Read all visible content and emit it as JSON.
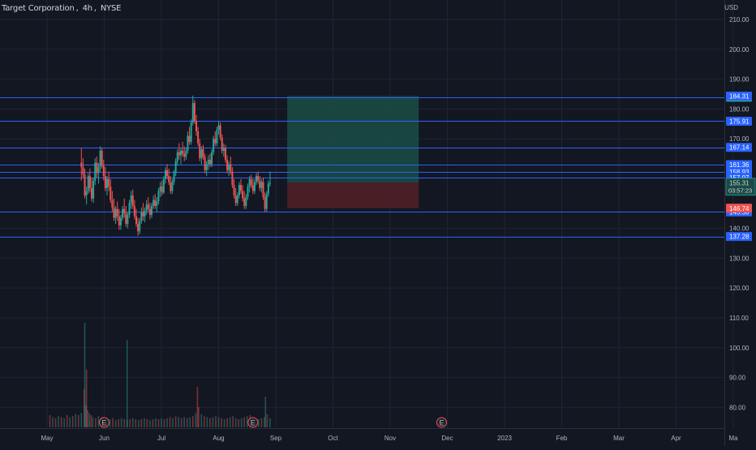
{
  "header": {
    "symbol": "Target Corporation",
    "interval": "4h",
    "exchange": "NYSE",
    "currency": "USD"
  },
  "colors": {
    "background": "#131722",
    "grid": "#1f2433",
    "up": "#26a69a",
    "down": "#ef5350",
    "hline": "#2962ff",
    "axis_text": "#b2b5be",
    "profit_zone": "#1b4a45",
    "loss_zone": "#4d1f26"
  },
  "chart_data": {
    "type": "candlestick",
    "x_axis_labels": [
      "May",
      "Jun",
      "Jul",
      "Aug",
      "Sep",
      "Oct",
      "Nov",
      "Dec",
      "2023",
      "Feb",
      "Mar",
      "Apr",
      "Ma"
    ],
    "y_axis_ticks": [
      "210.00",
      "200.00",
      "190.00",
      "180.00",
      "170.00",
      "140.00",
      "130.00",
      "120.00",
      "110.00",
      "100.00",
      "90.00",
      "80.00"
    ],
    "ylim": [
      73,
      215
    ],
    "horizontal_lines": [
      {
        "value": 183.94,
        "label": "183.94",
        "style": "green"
      },
      {
        "value": 175.91,
        "label": "175.91",
        "style": "blue"
      },
      {
        "value": 167.14,
        "label": "167.14",
        "style": "blue"
      },
      {
        "value": 161.36,
        "label": "161.36",
        "style": "blue"
      },
      {
        "value": 158.93,
        "label": "158.93",
        "style": "blue"
      },
      {
        "value": 157.07,
        "label": "157.07",
        "style": "blue"
      },
      {
        "value": 145.5,
        "label": "145.50",
        "style": "blue"
      },
      {
        "value": 137.28,
        "label": "137.28",
        "style": "blue"
      }
    ],
    "price_badges": [
      {
        "value": 184.31,
        "label": "184.31",
        "style": "blue"
      },
      {
        "value": 154.45,
        "label": "154.45",
        "style": "gray"
      },
      {
        "value": 146.74,
        "label": "146.74",
        "style": "red"
      }
    ],
    "last_price": {
      "value": 155.31,
      "label": "155.31",
      "countdown": "03:57:23"
    },
    "position": {
      "entry": 155.31,
      "target": 184.31,
      "stop": 146.74,
      "start_month": 4.2,
      "end_month": 6.5
    },
    "earnings_markers": [
      {
        "label": "E",
        "month": 1.0
      },
      {
        "label": "E",
        "month": 3.6
      },
      {
        "label": "E",
        "month": 6.9
      }
    ],
    "candles": [
      [
        0.6,
        162.0,
        167.0,
        156.0,
        160.5
      ],
      [
        0.63,
        160.5,
        163.5,
        157.0,
        158.0
      ],
      [
        0.66,
        158.0,
        160.0,
        150.0,
        151.0
      ],
      [
        0.69,
        151.0,
        154.0,
        148.0,
        152.5
      ],
      [
        0.72,
        152.5,
        158.5,
        151.5,
        157.5
      ],
      [
        0.75,
        157.5,
        160.0,
        152.0,
        153.5
      ],
      [
        0.78,
        153.5,
        157.0,
        149.0,
        150.0
      ],
      [
        0.81,
        150.0,
        157.0,
        148.5,
        156.0
      ],
      [
        0.84,
        156.0,
        163.5,
        154.5,
        162.0
      ],
      [
        0.87,
        162.0,
        164.0,
        157.0,
        158.5
      ],
      [
        0.9,
        158.5,
        162.0,
        155.0,
        160.5
      ],
      [
        0.93,
        160.5,
        167.5,
        159.0,
        166.0
      ],
      [
        0.96,
        166.0,
        167.0,
        160.0,
        161.0
      ],
      [
        0.99,
        161.0,
        163.0,
        156.0,
        157.5
      ],
      [
        1.02,
        157.5,
        160.5,
        152.5,
        153.5
      ],
      [
        1.05,
        153.5,
        157.5,
        151.0,
        156.5
      ],
      [
        1.08,
        156.5,
        159.0,
        152.5,
        154.0
      ],
      [
        1.11,
        154.0,
        156.5,
        148.5,
        149.5
      ],
      [
        1.14,
        149.5,
        152.5,
        145.5,
        147.0
      ],
      [
        1.17,
        147.0,
        150.0,
        142.5,
        143.5
      ],
      [
        1.2,
        143.5,
        147.5,
        141.5,
        146.5
      ],
      [
        1.23,
        146.5,
        149.0,
        142.5,
        144.0
      ],
      [
        1.26,
        144.0,
        146.5,
        139.5,
        141.0
      ],
      [
        1.29,
        141.0,
        144.5,
        139.5,
        143.5
      ],
      [
        1.32,
        143.5,
        147.5,
        142.5,
        146.5
      ],
      [
        1.35,
        146.5,
        150.0,
        143.5,
        145.0
      ],
      [
        1.38,
        145.0,
        147.5,
        140.5,
        141.5
      ],
      [
        1.41,
        141.5,
        145.5,
        140.0,
        144.5
      ],
      [
        1.44,
        144.5,
        149.5,
        143.5,
        148.5
      ],
      [
        1.47,
        148.5,
        152.5,
        146.5,
        151.0
      ],
      [
        1.5,
        151.0,
        153.0,
        146.5,
        147.5
      ],
      [
        1.53,
        147.5,
        149.5,
        143.0,
        144.0
      ],
      [
        1.56,
        144.0,
        146.5,
        140.5,
        141.5
      ],
      [
        1.59,
        141.5,
        143.5,
        137.5,
        139.0
      ],
      [
        1.62,
        139.0,
        143.5,
        138.0,
        142.5
      ],
      [
        1.65,
        142.5,
        147.0,
        141.5,
        145.5
      ],
      [
        1.68,
        145.5,
        148.5,
        142.5,
        144.0
      ],
      [
        1.71,
        144.0,
        147.0,
        142.0,
        146.0
      ],
      [
        1.74,
        146.0,
        149.5,
        144.5,
        148.0
      ],
      [
        1.77,
        148.0,
        150.5,
        145.5,
        146.5
      ],
      [
        1.8,
        146.5,
        148.5,
        143.0,
        144.5
      ],
      [
        1.83,
        144.5,
        148.5,
        143.5,
        147.5
      ],
      [
        1.86,
        147.5,
        151.0,
        146.5,
        149.5
      ],
      [
        1.89,
        149.5,
        151.5,
        146.5,
        147.5
      ],
      [
        1.92,
        147.5,
        150.5,
        145.5,
        149.0
      ],
      [
        1.95,
        149.0,
        153.5,
        148.0,
        152.5
      ],
      [
        1.98,
        152.5,
        155.5,
        150.5,
        154.0
      ],
      [
        2.01,
        154.0,
        156.0,
        151.0,
        152.0
      ],
      [
        2.04,
        152.0,
        157.5,
        151.5,
        156.5
      ],
      [
        2.07,
        156.5,
        160.5,
        155.0,
        159.5
      ],
      [
        2.1,
        159.5,
        161.5,
        156.5,
        157.5
      ],
      [
        2.13,
        157.5,
        160.0,
        154.5,
        155.5
      ],
      [
        2.16,
        155.5,
        157.5,
        151.5,
        152.5
      ],
      [
        2.19,
        152.5,
        156.5,
        151.5,
        155.5
      ],
      [
        2.22,
        155.5,
        159.5,
        154.5,
        158.5
      ],
      [
        2.25,
        158.5,
        163.5,
        157.5,
        162.5
      ],
      [
        2.28,
        162.5,
        166.5,
        161.0,
        165.5
      ],
      [
        2.31,
        165.5,
        168.5,
        163.0,
        164.5
      ],
      [
        2.34,
        164.5,
        167.0,
        161.5,
        166.0
      ],
      [
        2.37,
        166.0,
        169.0,
        164.0,
        165.0
      ],
      [
        2.4,
        165.0,
        167.5,
        162.5,
        164.0
      ],
      [
        2.43,
        164.0,
        167.0,
        163.0,
        166.0
      ],
      [
        2.46,
        166.0,
        172.5,
        165.0,
        171.0
      ],
      [
        2.49,
        171.0,
        174.0,
        168.0,
        169.0
      ],
      [
        2.52,
        169.0,
        176.5,
        168.0,
        175.5
      ],
      [
        2.55,
        175.5,
        184.5,
        174.5,
        182.0
      ],
      [
        2.58,
        182.0,
        183.0,
        175.0,
        176.0
      ],
      [
        2.61,
        176.0,
        178.0,
        171.0,
        172.5
      ],
      [
        2.64,
        172.5,
        174.0,
        167.5,
        168.5
      ],
      [
        2.67,
        168.5,
        170.0,
        162.5,
        163.5
      ],
      [
        2.7,
        163.5,
        167.5,
        161.5,
        166.5
      ],
      [
        2.73,
        166.5,
        168.0,
        163.0,
        164.0
      ],
      [
        2.76,
        164.0,
        165.0,
        158.5,
        159.5
      ],
      [
        2.79,
        159.5,
        162.5,
        157.5,
        161.5
      ],
      [
        2.82,
        161.5,
        164.5,
        159.5,
        163.0
      ],
      [
        2.85,
        163.0,
        165.0,
        160.5,
        161.5
      ],
      [
        2.88,
        161.5,
        166.5,
        160.5,
        165.5
      ],
      [
        2.91,
        165.5,
        171.0,
        164.5,
        170.0
      ],
      [
        2.94,
        170.0,
        172.5,
        167.5,
        168.5
      ],
      [
        2.97,
        168.5,
        174.0,
        167.5,
        173.0
      ],
      [
        3.0,
        173.0,
        176.0,
        171.5,
        174.5
      ],
      [
        3.03,
        174.5,
        175.5,
        169.5,
        170.5
      ],
      [
        3.06,
        170.5,
        171.5,
        165.0,
        166.0
      ],
      [
        3.09,
        166.0,
        168.5,
        164.0,
        167.0
      ],
      [
        3.12,
        167.0,
        168.0,
        162.0,
        163.0
      ],
      [
        3.15,
        163.0,
        164.5,
        158.5,
        159.5
      ],
      [
        3.18,
        159.5,
        162.5,
        157.5,
        161.5
      ],
      [
        3.21,
        161.5,
        164.0,
        158.0,
        159.0
      ],
      [
        3.24,
        159.0,
        160.5,
        153.5,
        154.5
      ],
      [
        3.27,
        154.5,
        156.5,
        150.0,
        151.0
      ],
      [
        3.3,
        151.0,
        153.5,
        147.5,
        148.5
      ],
      [
        3.33,
        148.5,
        152.0,
        147.5,
        151.0
      ],
      [
        3.36,
        151.0,
        155.5,
        150.0,
        154.5
      ],
      [
        3.39,
        154.5,
        156.5,
        151.5,
        152.5
      ],
      [
        3.42,
        152.5,
        154.5,
        149.0,
        150.0
      ],
      [
        3.45,
        150.0,
        152.5,
        146.5,
        147.5
      ],
      [
        3.48,
        147.5,
        151.5,
        146.5,
        150.5
      ],
      [
        3.51,
        150.5,
        155.0,
        149.5,
        154.0
      ],
      [
        3.54,
        154.0,
        157.5,
        152.0,
        156.5
      ],
      [
        3.57,
        156.5,
        158.0,
        153.5,
        154.5
      ],
      [
        3.6,
        154.5,
        156.5,
        151.5,
        152.5
      ],
      [
        3.63,
        152.5,
        156.5,
        151.5,
        155.5
      ],
      [
        3.66,
        155.5,
        158.5,
        154.5,
        157.5
      ],
      [
        3.69,
        157.5,
        159.0,
        155.0,
        156.0
      ],
      [
        3.72,
        156.0,
        157.5,
        152.5,
        153.5
      ],
      [
        3.75,
        153.5,
        156.5,
        152.0,
        155.5
      ],
      [
        3.78,
        155.5,
        157.0,
        149.5,
        150.5
      ],
      [
        3.81,
        150.5,
        152.0,
        145.5,
        146.5
      ],
      [
        3.84,
        146.5,
        152.5,
        145.5,
        151.5
      ],
      [
        3.87,
        151.5,
        156.0,
        150.5,
        155.0
      ],
      [
        3.9,
        155.0,
        159.0,
        154.0,
        155.3
      ]
    ],
    "volumes": [
      [
        0.05,
        12
      ],
      [
        0.1,
        10
      ],
      [
        0.15,
        9
      ],
      [
        0.2,
        11
      ],
      [
        0.25,
        10
      ],
      [
        0.3,
        9
      ],
      [
        0.35,
        12
      ],
      [
        0.4,
        10
      ],
      [
        0.45,
        11
      ],
      [
        0.5,
        13
      ],
      [
        0.55,
        12
      ],
      [
        0.6,
        14
      ],
      [
        0.65,
        38
      ],
      [
        0.68,
        22
      ],
      [
        0.71,
        17
      ],
      [
        0.74,
        14
      ],
      [
        0.77,
        12
      ],
      [
        0.8,
        10
      ],
      [
        0.85,
        9
      ],
      [
        0.9,
        11
      ],
      [
        0.95,
        10
      ],
      [
        1.0,
        9
      ],
      [
        1.05,
        7
      ],
      [
        1.1,
        8
      ],
      [
        1.15,
        9
      ],
      [
        1.2,
        7
      ],
      [
        1.25,
        8
      ],
      [
        1.3,
        9
      ],
      [
        1.35,
        8
      ],
      [
        1.4,
        7
      ],
      [
        1.45,
        8
      ],
      [
        1.5,
        9
      ],
      [
        1.55,
        8
      ],
      [
        1.6,
        7
      ],
      [
        1.65,
        8
      ],
      [
        1.7,
        9
      ],
      [
        1.75,
        8
      ],
      [
        1.8,
        7
      ],
      [
        1.85,
        8
      ],
      [
        1.9,
        9
      ],
      [
        1.95,
        8
      ],
      [
        2.0,
        9
      ],
      [
        2.05,
        8
      ],
      [
        2.1,
        9
      ],
      [
        2.15,
        10
      ],
      [
        2.2,
        9
      ],
      [
        2.25,
        11
      ],
      [
        2.3,
        10
      ],
      [
        2.35,
        9
      ],
      [
        2.4,
        10
      ],
      [
        2.45,
        9
      ],
      [
        2.5,
        10
      ],
      [
        2.55,
        11
      ],
      [
        2.6,
        14
      ],
      [
        2.65,
        20
      ],
      [
        2.7,
        13
      ],
      [
        2.75,
        11
      ],
      [
        2.8,
        10
      ],
      [
        2.85,
        9
      ],
      [
        2.9,
        10
      ],
      [
        2.95,
        11
      ],
      [
        3.0,
        10
      ],
      [
        3.05,
        9
      ],
      [
        3.1,
        8
      ],
      [
        3.15,
        9
      ],
      [
        3.2,
        10
      ],
      [
        3.25,
        11
      ],
      [
        3.3,
        9
      ],
      [
        3.35,
        8
      ],
      [
        3.4,
        9
      ],
      [
        3.45,
        10
      ],
      [
        3.5,
        11
      ],
      [
        3.55,
        12
      ],
      [
        3.6,
        10
      ],
      [
        3.65,
        9
      ],
      [
        3.7,
        8
      ],
      [
        3.75,
        9
      ],
      [
        3.8,
        10
      ],
      [
        3.85,
        13
      ],
      [
        3.9,
        9
      ]
    ],
    "volume_extra_spikes": [
      [
        0.66,
        103
      ],
      [
        0.69,
        57
      ],
      [
        1.4,
        86
      ],
      [
        2.63,
        40
      ],
      [
        3.82,
        30
      ]
    ]
  }
}
